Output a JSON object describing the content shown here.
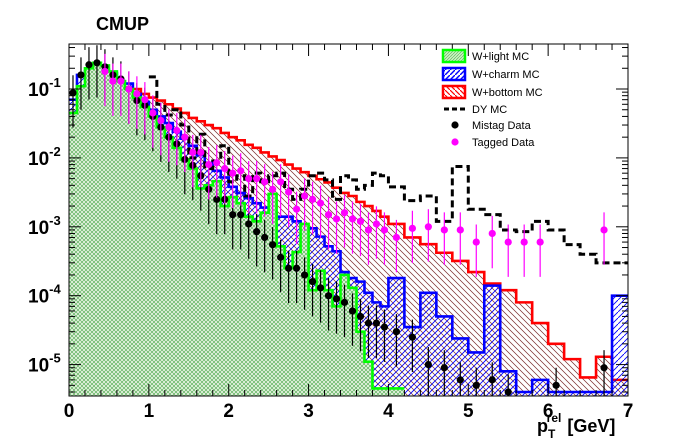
{
  "chart_data": {
    "type": "histogram",
    "title": "CMUP",
    "xlabel": {
      "base": "p",
      "sub": "T",
      "sup": "rel",
      "unit": "[GeV]"
    },
    "xlim": [
      0,
      7
    ],
    "ylim": [
      3.5e-06,
      0.45
    ],
    "yscale": "log",
    "grid": false,
    "legend_position": "top-right",
    "bin_edges": [
      0,
      0.1,
      0.2,
      0.3,
      0.4,
      0.5,
      0.6,
      0.7,
      0.8,
      0.9,
      1.0,
      1.1,
      1.2,
      1.3,
      1.4,
      1.5,
      1.6,
      1.7,
      1.8,
      1.9,
      2.0,
      2.1,
      2.2,
      2.3,
      2.4,
      2.5,
      2.6,
      2.7,
      2.8,
      2.9,
      3.0,
      3.1,
      3.2,
      3.3,
      3.4,
      3.5,
      3.6,
      3.7,
      3.8,
      3.9,
      4.0,
      4.2,
      4.4,
      4.6,
      4.8,
      5.0,
      5.2,
      5.4,
      5.6,
      5.8,
      6.0,
      6.2,
      6.4,
      6.6,
      6.8,
      7.0
    ],
    "x_ticks": [
      {
        "value": 0,
        "label": "0"
      },
      {
        "value": 1,
        "label": "1"
      },
      {
        "value": 2,
        "label": "2"
      },
      {
        "value": 3,
        "label": "3"
      },
      {
        "value": 4,
        "label": "4"
      },
      {
        "value": 5,
        "label": "5"
      },
      {
        "value": 6,
        "label": "6"
      },
      {
        "value": 7,
        "label": "7"
      }
    ],
    "y_ticks": [
      {
        "value": 0.1,
        "base": "10",
        "exp": "-1"
      },
      {
        "value": 0.01,
        "base": "10",
        "exp": "-2"
      },
      {
        "value": 0.001,
        "base": "10",
        "exp": "-3"
      },
      {
        "value": 0.0001,
        "base": "10",
        "exp": "-4"
      },
      {
        "value": 1e-05,
        "base": "10",
        "exp": "-5"
      }
    ],
    "series": [
      {
        "name": "W+bottom MC",
        "kind": "hist",
        "color": "#ff0000",
        "fill": "hatch-bottom",
        "values": [
          0.045,
          0.09,
          0.11,
          0.125,
          0.13,
          0.13,
          0.12,
          0.1,
          0.1,
          0.085,
          0.075,
          0.068,
          0.06,
          0.052,
          0.045,
          0.038,
          0.034,
          0.03,
          0.027,
          0.023,
          0.02,
          0.018,
          0.0155,
          0.014,
          0.012,
          0.0105,
          0.0093,
          0.008,
          0.007,
          0.0062,
          0.0055,
          0.0049,
          0.0044,
          0.0037,
          0.0031,
          0.0028,
          0.0023,
          0.002,
          0.0017,
          0.0014,
          0.0011,
          0.0007,
          0.00056,
          0.00042,
          0.00032,
          0.00022,
          0.00015,
          0.00012,
          8e-05,
          4e-05,
          2e-05,
          1.2e-05,
          6.5e-06,
          1.3e-05,
          6e-06
        ]
      },
      {
        "name": "W+charm MC",
        "kind": "hist",
        "color": "#0000ff",
        "fill": "hatch-charm",
        "values": [
          0.07,
          0.16,
          0.18,
          0.2,
          0.19,
          0.17,
          0.13,
          0.12,
          0.085,
          0.065,
          0.05,
          0.04,
          0.032,
          0.024,
          0.019,
          0.015,
          0.011,
          0.0085,
          0.0065,
          0.0052,
          0.0038,
          0.0031,
          0.0026,
          0.0022,
          0.0019,
          0.0016,
          0.0014,
          0.0014,
          0.0012,
          0.00095,
          0.00095,
          0.00072,
          0.00052,
          0.00044,
          0.00022,
          0.00018,
          0.00016,
          0.00011,
          8e-05,
          7e-05,
          0.00018,
          3.5e-05,
          0.00011,
          5e-05,
          2.4e-05,
          1.5e-05,
          0.00014,
          8e-06,
          4e-06,
          6e-06,
          4e-06,
          4e-06,
          4e-06,
          4e-06,
          0.0001
        ]
      },
      {
        "name": "W+light MC",
        "kind": "hist",
        "color": "#00ff00",
        "fill": "hatch-light",
        "values": [
          0.045,
          0.11,
          0.2,
          0.24,
          0.22,
          0.18,
          0.13,
          0.1,
          0.075,
          0.055,
          0.04,
          0.028,
          0.02,
          0.014,
          0.0095,
          0.007,
          0.0036,
          0.004,
          0.0046,
          0.002,
          0.0027,
          0.0022,
          0.0014,
          0.0012,
          0.0016,
          0.003,
          0.00052,
          0.00025,
          0.00043,
          0.0011,
          0.00012,
          0.00023,
          0.00012,
          7e-05,
          0.0002,
          0.00013,
          3e-05,
          1.1e-05,
          4.5e-06,
          4.5e-06,
          4.5e-06
        ]
      },
      {
        "name": "DY MC",
        "kind": "hist-line",
        "color": "#000000",
        "fill": "none",
        "values": [
          null,
          null,
          null,
          null,
          null,
          null,
          null,
          null,
          null,
          null,
          0.15,
          0.06,
          0.042,
          0.05,
          0.03,
          0.01,
          0.022,
          0.007,
          0.009,
          0.015,
          0.0045,
          0.0055,
          0.0028,
          0.006,
          0.0045,
          0.0055,
          0.006,
          0.0035,
          0.0025,
          0.0035,
          0.0055,
          0.006,
          0.0048,
          0.0025,
          0.0055,
          0.0048,
          0.0035,
          0.004,
          0.006,
          0.0055,
          0.0038,
          0.0024,
          0.0028,
          0.0012,
          0.0075,
          0.0018,
          0.0015,
          0.0009,
          0.00085,
          0.0012,
          0.0009,
          0.00055,
          0.0004,
          0.0003,
          0.0003
        ]
      },
      {
        "name": "Mistag Data",
        "kind": "points",
        "color": "#000000",
        "marker": "circle",
        "points": [
          {
            "x": 0.05,
            "y": 0.088
          },
          {
            "x": 0.15,
            "y": 0.16
          },
          {
            "x": 0.25,
            "y": 0.225
          },
          {
            "x": 0.35,
            "y": 0.24
          },
          {
            "x": 0.45,
            "y": 0.21
          },
          {
            "x": 0.55,
            "y": 0.16
          },
          {
            "x": 0.65,
            "y": 0.14
          },
          {
            "x": 0.75,
            "y": 0.1
          },
          {
            "x": 0.85,
            "y": 0.068
          },
          {
            "x": 0.95,
            "y": 0.058
          },
          {
            "x": 1.05,
            "y": 0.04
          },
          {
            "x": 1.15,
            "y": 0.028
          },
          {
            "x": 1.25,
            "y": 0.02
          },
          {
            "x": 1.35,
            "y": 0.016
          },
          {
            "x": 1.45,
            "y": 0.0095
          },
          {
            "x": 1.55,
            "y": 0.0078
          },
          {
            "x": 1.65,
            "y": 0.0055
          },
          {
            "x": 1.75,
            "y": 0.0035
          },
          {
            "x": 1.85,
            "y": 0.0025
          },
          {
            "x": 1.95,
            "y": 0.0025
          },
          {
            "x": 2.05,
            "y": 0.0015
          },
          {
            "x": 2.15,
            "y": 0.0015
          },
          {
            "x": 2.25,
            "y": 0.0011
          },
          {
            "x": 2.35,
            "y": 0.00085
          },
          {
            "x": 2.45,
            "y": 0.0007
          },
          {
            "x": 2.55,
            "y": 0.00055
          },
          {
            "x": 2.65,
            "y": 0.00036
          },
          {
            "x": 2.75,
            "y": 0.00025
          },
          {
            "x": 2.85,
            "y": 0.00025
          },
          {
            "x": 2.95,
            "y": 0.0002
          },
          {
            "x": 3.05,
            "y": 0.00016
          },
          {
            "x": 3.15,
            "y": 0.00013
          },
          {
            "x": 3.25,
            "y": 0.0001
          },
          {
            "x": 3.35,
            "y": 9e-05
          },
          {
            "x": 3.45,
            "y": 8e-05
          },
          {
            "x": 3.55,
            "y": 6e-05
          },
          {
            "x": 3.65,
            "y": 5e-05
          },
          {
            "x": 3.75,
            "y": 4e-05
          },
          {
            "x": 3.85,
            "y": 4e-05
          },
          {
            "x": 3.95,
            "y": 3.5e-05
          },
          {
            "x": 4.1,
            "y": 3e-05
          },
          {
            "x": 4.3,
            "y": 2.5e-05
          },
          {
            "x": 4.5,
            "y": 1e-05
          },
          {
            "x": 4.7,
            "y": 9e-06
          },
          {
            "x": 4.9,
            "y": 6e-06
          },
          {
            "x": 5.1,
            "y": 5e-06
          },
          {
            "x": 5.3,
            "y": 6e-06
          },
          {
            "x": 5.5,
            "y": 4e-06
          },
          {
            "x": 6.1,
            "y": 5e-06
          },
          {
            "x": 6.7,
            "y": 9e-06
          }
        ]
      },
      {
        "name": "Tagged Data",
        "kind": "points",
        "color": "#ff00ff",
        "marker": "circle",
        "points": [
          {
            "x": 0.45,
            "y": 0.18
          },
          {
            "x": 0.55,
            "y": 0.13
          },
          {
            "x": 0.65,
            "y": 0.13
          },
          {
            "x": 0.75,
            "y": 0.1
          },
          {
            "x": 0.85,
            "y": 0.085
          },
          {
            "x": 0.95,
            "y": 0.07
          },
          {
            "x": 1.05,
            "y": 0.045
          },
          {
            "x": 1.15,
            "y": 0.035
          },
          {
            "x": 1.25,
            "y": 0.028
          },
          {
            "x": 1.35,
            "y": 0.025
          },
          {
            "x": 1.45,
            "y": 0.02
          },
          {
            "x": 1.55,
            "y": 0.012
          },
          {
            "x": 1.65,
            "y": 0.012
          },
          {
            "x": 1.75,
            "y": 0.008
          },
          {
            "x": 1.85,
            "y": 0.0085
          },
          {
            "x": 1.95,
            "y": 0.007
          },
          {
            "x": 2.05,
            "y": 0.006
          },
          {
            "x": 2.15,
            "y": 0.0065
          },
          {
            "x": 2.25,
            "y": 0.005
          },
          {
            "x": 2.35,
            "y": 0.005
          },
          {
            "x": 2.45,
            "y": 0.0045
          },
          {
            "x": 2.55,
            "y": 0.0035
          },
          {
            "x": 2.65,
            "y": 0.0045
          },
          {
            "x": 2.75,
            "y": 0.0032
          },
          {
            "x": 2.85,
            "y": 0.0018
          },
          {
            "x": 2.95,
            "y": 0.0028
          },
          {
            "x": 3.05,
            "y": 0.0025
          },
          {
            "x": 3.15,
            "y": 0.0022
          },
          {
            "x": 3.25,
            "y": 0.0015
          },
          {
            "x": 3.35,
            "y": 0.0013
          },
          {
            "x": 3.45,
            "y": 0.0016
          },
          {
            "x": 3.55,
            "y": 0.0013
          },
          {
            "x": 3.65,
            "y": 0.0012
          },
          {
            "x": 3.75,
            "y": 0.0009
          },
          {
            "x": 3.85,
            "y": 0.0011
          },
          {
            "x": 3.95,
            "y": 0.0009
          },
          {
            "x": 4.1,
            "y": 0.0007
          },
          {
            "x": 4.3,
            "y": 0.00095
          },
          {
            "x": 4.5,
            "y": 0.001
          },
          {
            "x": 4.7,
            "y": 0.0009
          },
          {
            "x": 4.9,
            "y": 0.0009
          },
          {
            "x": 5.1,
            "y": 0.0006
          },
          {
            "x": 5.3,
            "y": 0.0008
          },
          {
            "x": 5.5,
            "y": 0.0006
          },
          {
            "x": 5.7,
            "y": 0.0006
          },
          {
            "x": 5.9,
            "y": 0.0006
          },
          {
            "x": 6.7,
            "y": 0.0009
          }
        ]
      }
    ]
  }
}
